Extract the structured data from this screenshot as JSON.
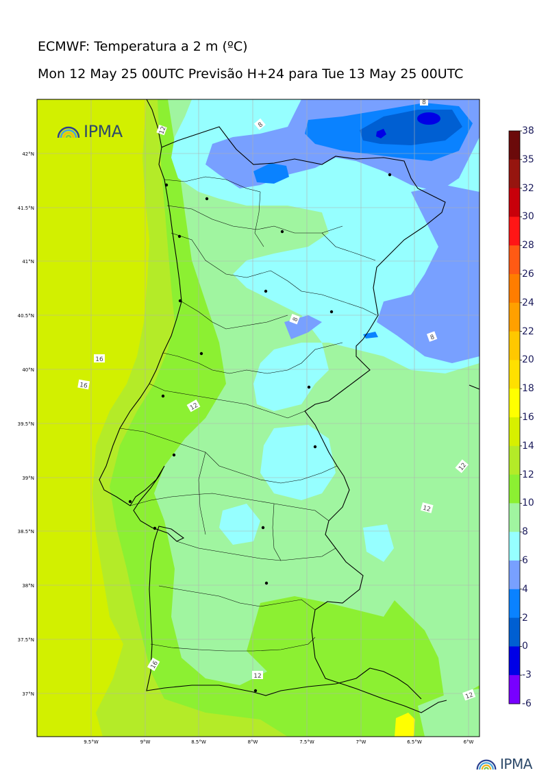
{
  "title_line1": "ECMWF: Temperatura a 2 m (ºC)",
  "title_line2": "Mon 12 May 25 00UTC Previsão H+24 para Tue 13 May 25 00UTC",
  "logo_text": "IPMA",
  "lat_labels": [
    "42°N",
    "41.5°N",
    "41°N",
    "40.5°N",
    "40°N",
    "39.5°N",
    "39°N",
    "38.5°N",
    "38°N",
    "37.5°N",
    "37°N"
  ],
  "lon_labels": [
    "9.5°W",
    "9°W",
    "8.5°W",
    "8°W",
    "7.5°W",
    "7°W",
    "6.5°W",
    "6°W"
  ],
  "colorbar": {
    "levels": [
      "38",
      "35",
      "32",
      "30",
      "28",
      "26",
      "24",
      "22",
      "20",
      "18",
      "16",
      "14",
      "12",
      "10",
      "8",
      "6",
      "4",
      "2",
      "0",
      "-3",
      "-6"
    ],
    "colors": [
      "#6b0a0a",
      "#96150f",
      "#c8000a",
      "#ff1616",
      "#ff5a14",
      "#ff7d00",
      "#ffa000",
      "#ffc800",
      "#ffe000",
      "#ffff00",
      "#d7f000",
      "#b4eb28",
      "#8cf032",
      "#a0f5a0",
      "#96ffff",
      "#78a0ff",
      "#0a82ff",
      "#005fd2",
      "#0000e6",
      "#7800ff",
      "#c800ff"
    ]
  },
  "contour_labels": [
    "16",
    "16",
    "16",
    "12",
    "12",
    "12",
    "12",
    "12",
    "12",
    "8",
    "8",
    "8",
    "8"
  ],
  "field_colors": {
    "ocean_16_18": "#d2f000",
    "band_14_16": "#b4eb28",
    "band_12_14": "#8cf032",
    "band_10_12": "#a0f5a0",
    "band_8_10": "#96ffff",
    "band_6_8": "#78a0ff",
    "band_4_6": "#0a82ff",
    "band_2_4": "#005fd2",
    "band_0_2": "#0000e6",
    "spot_18_20": "#ffff00"
  }
}
